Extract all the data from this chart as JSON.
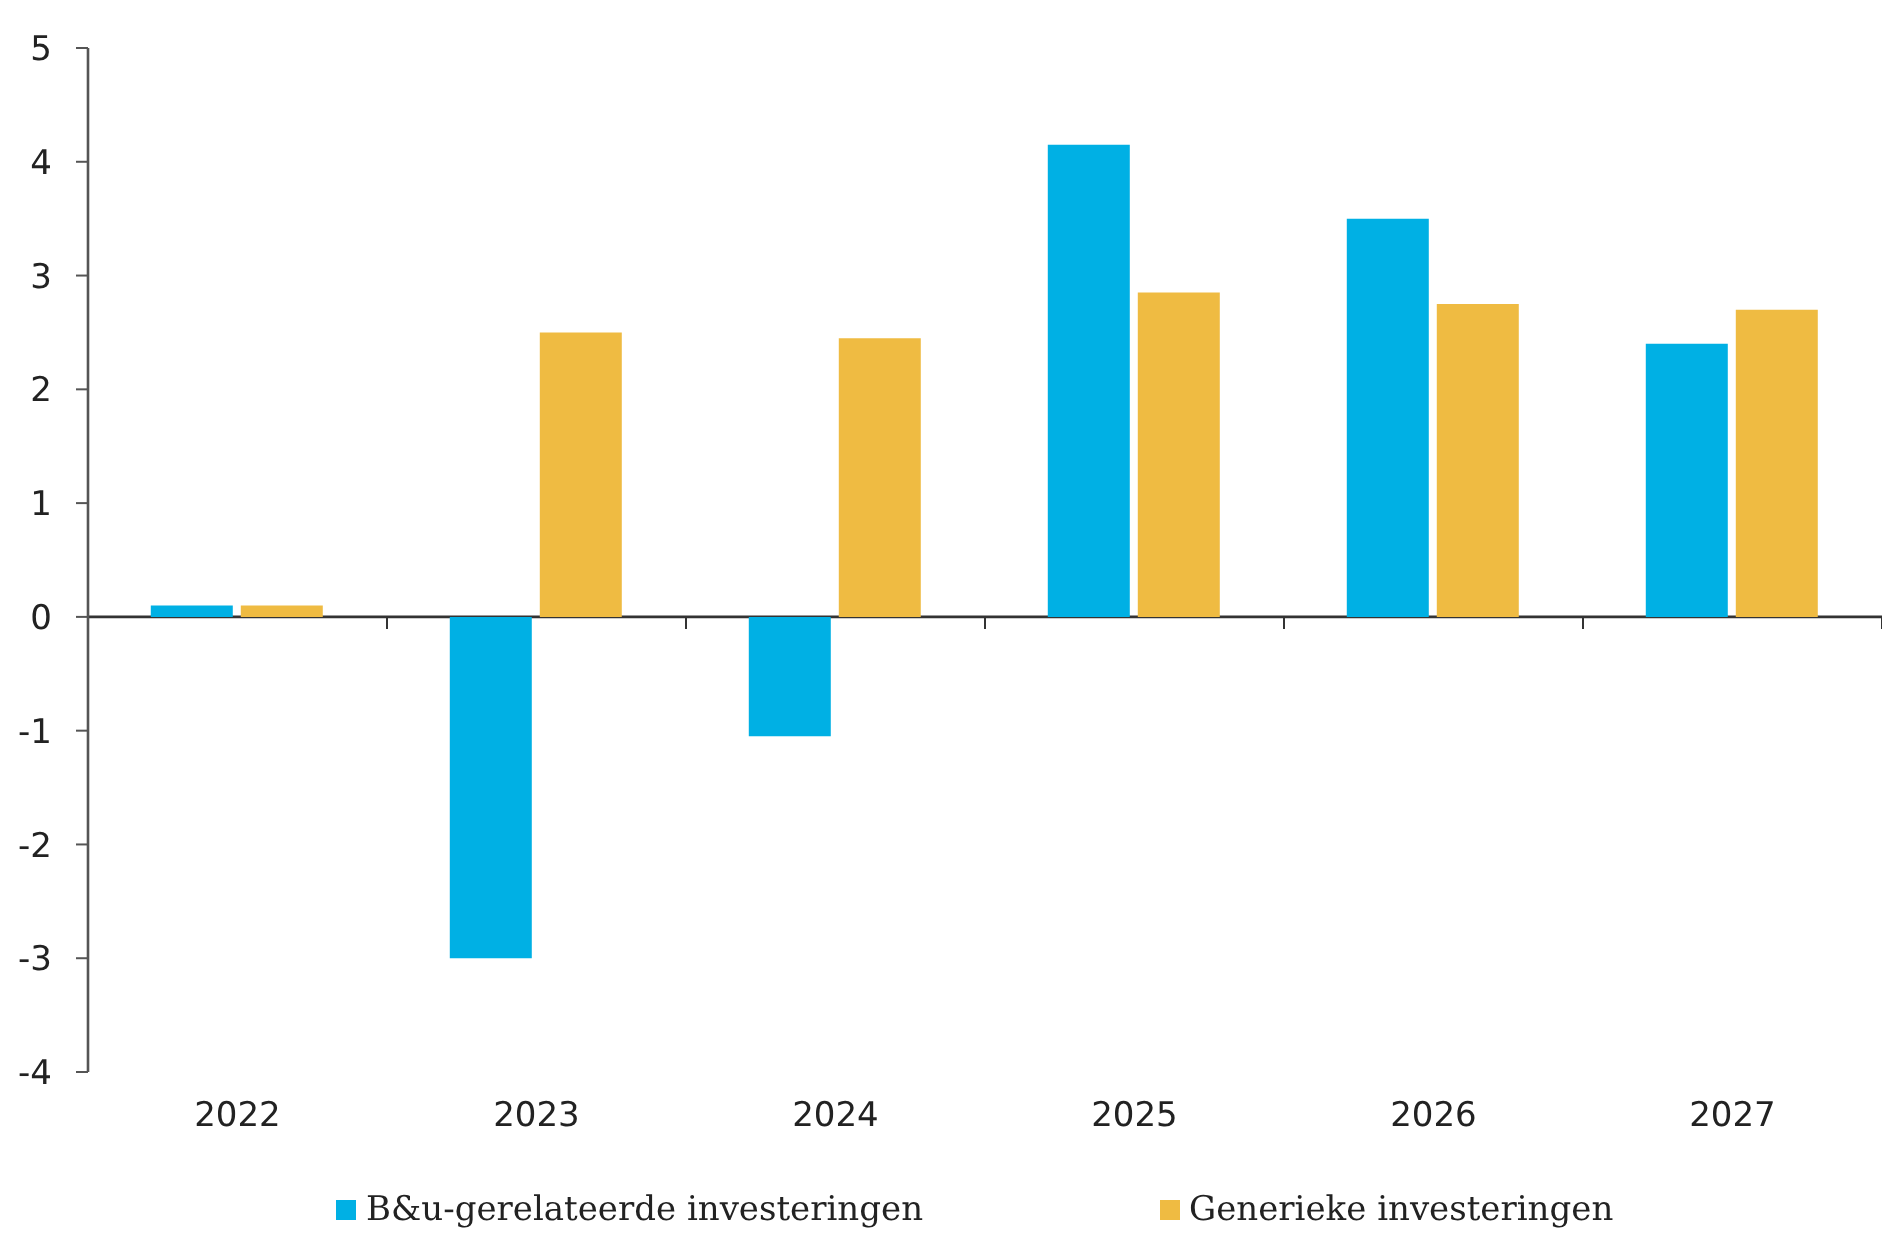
{
  "chart_data": {
    "type": "bar",
    "categories": [
      "2022",
      "2023",
      "2024",
      "2025",
      "2026",
      "2027"
    ],
    "series": [
      {
        "name": "B&u-gerelateerde investeringen",
        "color": "#00b0e4",
        "values": [
          0.1,
          -3.0,
          -1.05,
          4.15,
          3.5,
          2.4
        ]
      },
      {
        "name": "Generieke investeringen",
        "color": "#efbb42",
        "values": [
          0.1,
          2.5,
          2.45,
          2.85,
          2.75,
          2.7
        ]
      }
    ],
    "ylim": [
      -4,
      5
    ],
    "yticks": [
      -4,
      -3,
      -2,
      -1,
      0,
      1,
      2,
      3,
      4,
      5
    ],
    "legend": "bottom"
  }
}
